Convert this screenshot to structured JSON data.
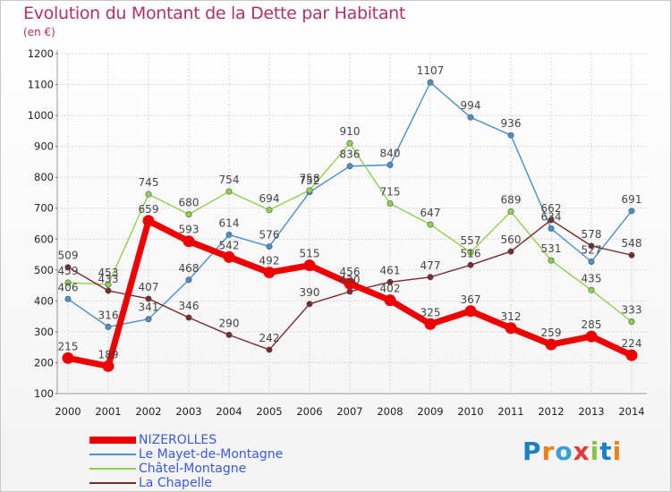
{
  "title": "Evolution du Montant de la Dette par Habitant",
  "subtitle": "(en €)",
  "brand": {
    "text": "Proxiti",
    "letters": [
      "P",
      "r",
      "o",
      "x",
      "i",
      "t",
      "i"
    ],
    "colors": [
      "#1a80c8",
      "#e8831a",
      "#3aa0d8",
      "#e03a3a",
      "#8bc34a",
      "#1a80c8",
      "#e8831a"
    ]
  },
  "chart_data": {
    "type": "line",
    "categories": [
      "2000",
      "2001",
      "2002",
      "2003",
      "2004",
      "2005",
      "2006",
      "2007",
      "2008",
      "2009",
      "2010",
      "2011",
      "2012",
      "2013",
      "2014"
    ],
    "ylim": [
      100,
      1200
    ],
    "yticks": [
      100,
      200,
      300,
      400,
      500,
      600,
      700,
      800,
      900,
      1000,
      1100,
      1200
    ],
    "grid": true,
    "legend_position": "bottom-left",
    "series": [
      {
        "name": "Le Mayet-de-Montagne",
        "color": "#4a90c8",
        "values": [
          406,
          316,
          341,
          468,
          614,
          576,
          752,
          836,
          840,
          1107,
          994,
          936,
          634,
          527,
          691
        ]
      },
      {
        "name": "Châtel-Montagne",
        "color": "#8fd14f",
        "values": [
          459,
          453,
          745,
          680,
          754,
          694,
          758,
          910,
          715,
          647,
          557,
          689,
          531,
          435,
          333
        ]
      },
      {
        "name": "La Chapelle",
        "color": "#7a2a2a",
        "values": [
          509,
          433,
          407,
          346,
          290,
          242,
          390,
          430,
          461,
          477,
          516,
          560,
          662,
          578,
          548
        ]
      },
      {
        "name": "NIZEROLLES",
        "color": "#ee0000",
        "values": [
          215,
          189,
          659,
          593,
          542,
          492,
          515,
          456,
          402,
          325,
          367,
          312,
          259,
          285,
          224
        ]
      }
    ],
    "legend": [
      {
        "name": "NIZEROLLES",
        "color": "#ee0000",
        "width": 8
      },
      {
        "name": "Le Mayet-de-Montagne",
        "color": "#4a90c8",
        "width": 1.5
      },
      {
        "name": "Châtel-Montagne",
        "color": "#8fd14f",
        "width": 1.5
      },
      {
        "name": "La Chapelle",
        "color": "#7a2a2a",
        "width": 1.5
      }
    ]
  }
}
